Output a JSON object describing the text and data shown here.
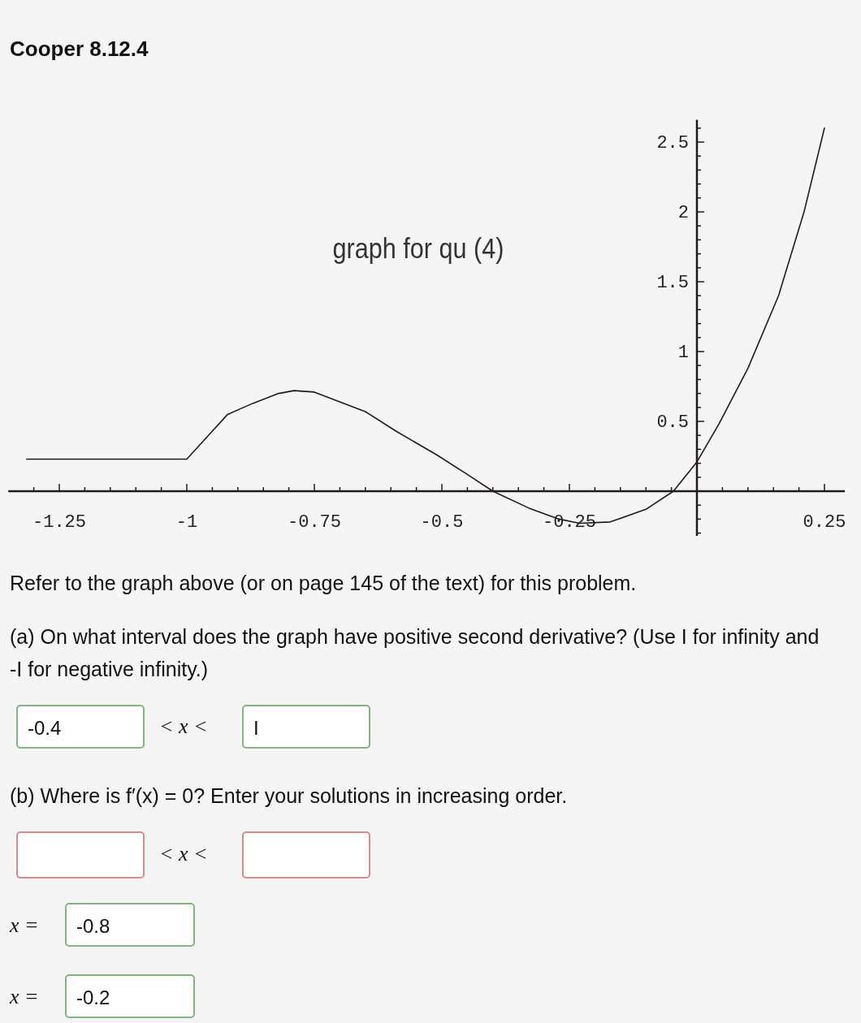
{
  "chart_data": {
    "type": "line",
    "title": "graph for qu (4)",
    "x": [
      -1.314,
      -1.1,
      -1,
      -0.97,
      -0.92,
      -0.87,
      -0.82,
      -0.79,
      -0.75,
      -0.7,
      -0.65,
      -0.59,
      -0.51,
      -0.45,
      -0.4,
      -0.33,
      -0.27,
      -0.23,
      -0.17,
      -0.1,
      -0.046,
      0,
      0.043,
      0.1,
      0.16,
      0.21,
      0.25
    ],
    "series": [
      {
        "color": "#231a1a",
        "values": [
          0.23,
          0.23,
          0.23,
          0.35,
          0.55,
          0.63,
          0.7,
          0.72,
          0.71,
          0.64,
          0.57,
          0.43,
          0.26,
          0.12,
          0,
          -0.12,
          -0.2,
          -0.23,
          -0.22,
          -0.13,
          0,
          0.21,
          0.48,
          0.88,
          1.4,
          2.0,
          2.6
        ]
      }
    ],
    "xlim": [
      -1.35,
      0.29
    ],
    "ylim": [
      -0.32,
      2.66
    ],
    "xticks": [
      {
        "value": -1.3,
        "label": null
      },
      -1.25,
      {
        "value": -1.2,
        "label": null
      },
      {
        "value": -1.15,
        "label": null
      },
      {
        "value": -1.1,
        "label": null
      },
      {
        "value": -1.05,
        "label": null
      },
      -1,
      {
        "value": -0.95,
        "label": null
      },
      {
        "value": -0.9,
        "label": null
      },
      {
        "value": -0.85,
        "label": null
      },
      {
        "value": -0.8,
        "label": null
      },
      -0.75,
      {
        "value": -0.7,
        "label": null
      },
      {
        "value": -0.65,
        "label": null
      },
      {
        "value": -0.6,
        "label": null
      },
      {
        "value": -0.55,
        "label": null
      },
      -0.5,
      {
        "value": -0.45,
        "label": null
      },
      {
        "value": -0.4,
        "label": null
      },
      {
        "value": -0.35,
        "label": null
      },
      {
        "value": -0.3,
        "label": null
      },
      -0.25,
      {
        "value": -0.2,
        "label": null
      },
      {
        "value": -0.15,
        "label": null
      },
      {
        "value": -0.1,
        "label": null
      },
      {
        "value": -0.05,
        "label": null
      },
      {
        "value": 0.05,
        "label": null
      },
      {
        "value": 0.1,
        "label": null
      },
      {
        "value": 0.15,
        "label": null
      },
      {
        "value": 0.2,
        "label": null
      },
      0.25
    ],
    "yticks": [
      {
        "value": -0.3,
        "label": null
      },
      {
        "value": -0.2,
        "label": null
      },
      {
        "value": -0.1,
        "label": null
      },
      {
        "value": 0.1,
        "label": null
      },
      {
        "value": 0.2,
        "label": null
      },
      {
        "value": 0.3,
        "label": null
      },
      {
        "value": 0.4,
        "label": null
      },
      0.5,
      {
        "value": 0.6,
        "label": null
      },
      {
        "value": 0.7,
        "label": null
      },
      {
        "value": 0.8,
        "label": null
      },
      {
        "value": 0.9,
        "label": null
      },
      1,
      {
        "value": 1.1,
        "label": null
      },
      {
        "value": 1.2,
        "label": null
      },
      {
        "value": 1.3,
        "label": null
      },
      {
        "value": 1.4,
        "label": null
      },
      1.5,
      {
        "value": 1.6,
        "label": null
      },
      {
        "value": 1.7,
        "label": null
      },
      {
        "value": 1.8,
        "label": null
      },
      {
        "value": 1.9,
        "label": null
      },
      2,
      {
        "value": 2.1,
        "label": null
      },
      {
        "value": 2.2,
        "label": null
      },
      {
        "value": 2.3,
        "label": null
      },
      {
        "value": 2.4,
        "label": null
      },
      2.5,
      {
        "value": 2.6,
        "label": null
      }
    ],
    "grid": false,
    "annotations": [
      "Cooper 8.12.4",
      "Refer to the graph above (or on page 145 of the text) for this problem.",
      "(a) On what interval does the graph have positive second derivative? (Use I for infinity and -I for negative infinity.)",
      "-0.4",
      "< x <",
      "I",
      "(b) Where is f′(x) = 0? Enter your solutions in increasing order.",
      "< x <",
      "x =",
      "-0.8",
      "x =",
      "-0.2"
    ]
  }
}
